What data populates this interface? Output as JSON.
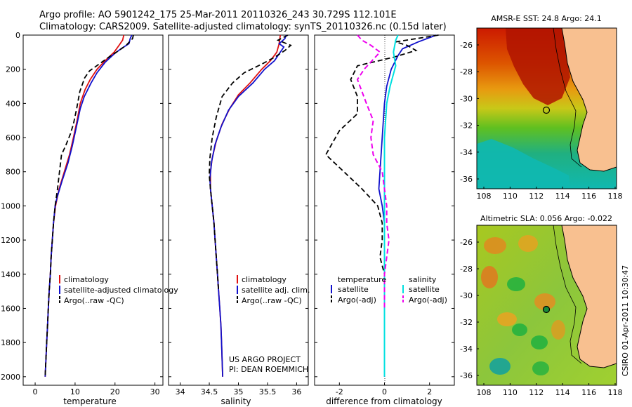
{
  "header": {
    "line1": "Argo profile: AO 5901242_175 25-Mar-2011 20110326_243 30.729S 112.101E",
    "line2": "Climatology: CARS2009. Satellite-adjusted climatology: synTS_20110326.nc (0.15d later)"
  },
  "side_label": "CSIRO 01-Apr-2011 10:30:47",
  "project": {
    "line1": "US ARGO PROJECT",
    "line2": "PI: DEAN ROEMMICH"
  },
  "colors": {
    "climatology": "#e01010",
    "satellite": "#1010cc",
    "argo": "#000000",
    "cyan": "#00e0e0",
    "magenta": "#ee00ee",
    "land": "#f8c090"
  },
  "chart_data": [
    {
      "type": "line",
      "xlabel": "temperature",
      "ylabel": "",
      "xlim": [
        -3,
        32
      ],
      "ylim": [
        2050,
        0
      ],
      "x_ticks": [
        0,
        10,
        20,
        30
      ],
      "y_ticks": [
        0,
        200,
        400,
        600,
        800,
        1000,
        1200,
        1400,
        1600,
        1800,
        2000
      ],
      "legend": [
        "climatology",
        "satellite-adjusted climatology",
        "Argo(..raw -QC)"
      ],
      "series": [
        {
          "name": "climatology",
          "style": "red",
          "points": [
            [
              22.2,
              0
            ],
            [
              21.9,
              30
            ],
            [
              21.0,
              60
            ],
            [
              19.8,
              100
            ],
            [
              17.5,
              150
            ],
            [
              15.5,
              200
            ],
            [
              13.8,
              260
            ],
            [
              12.5,
              320
            ],
            [
              11.3,
              400
            ],
            [
              10.5,
              500
            ],
            [
              9.6,
              600
            ],
            [
              8.6,
              700
            ],
            [
              7.3,
              800
            ],
            [
              6.0,
              900
            ],
            [
              5.1,
              1000
            ],
            [
              4.6,
              1100
            ],
            [
              4.3,
              1200
            ],
            [
              4.0,
              1300
            ],
            [
              3.8,
              1400
            ],
            [
              3.5,
              1500
            ],
            [
              3.3,
              1600
            ],
            [
              3.1,
              1700
            ],
            [
              2.9,
              1800
            ],
            [
              2.7,
              1900
            ],
            [
              2.5,
              2000
            ]
          ]
        },
        {
          "name": "satellite-adjusted climatology",
          "style": "blue",
          "points": [
            [
              24.2,
              0
            ],
            [
              23.8,
              20
            ],
            [
              23.5,
              50
            ],
            [
              21.5,
              80
            ],
            [
              19.8,
              110
            ],
            [
              17.5,
              160
            ],
            [
              15.5,
              220
            ],
            [
              14.0,
              280
            ],
            [
              12.3,
              360
            ],
            [
              11.3,
              430
            ],
            [
              10.2,
              550
            ],
            [
              9.3,
              650
            ],
            [
              8.2,
              750
            ],
            [
              6.8,
              850
            ],
            [
              5.5,
              950
            ],
            [
              5.0,
              1000
            ],
            [
              4.6,
              1100
            ],
            [
              4.3,
              1200
            ],
            [
              4.0,
              1300
            ],
            [
              3.8,
              1400
            ],
            [
              3.5,
              1500
            ],
            [
              3.3,
              1600
            ],
            [
              3.1,
              1700
            ],
            [
              2.9,
              1800
            ],
            [
              2.7,
              1900
            ],
            [
              2.5,
              2000
            ]
          ]
        },
        {
          "name": "Argo(..raw -QC)",
          "style": "black-dash",
          "points": [
            [
              24.6,
              0
            ],
            [
              24.4,
              20
            ],
            [
              23.6,
              40
            ],
            [
              22.8,
              60
            ],
            [
              21.0,
              90
            ],
            [
              19.0,
              120
            ],
            [
              16.0,
              170
            ],
            [
              13.6,
              210
            ],
            [
              12.4,
              250
            ],
            [
              11.2,
              330
            ],
            [
              10.4,
              430
            ],
            [
              9.6,
              520
            ],
            [
              8.8,
              580
            ],
            [
              7.6,
              650
            ],
            [
              6.6,
              700
            ],
            [
              6.2,
              780
            ],
            [
              5.6,
              900
            ],
            [
              5.0,
              1000
            ],
            [
              4.6,
              1100
            ],
            [
              4.3,
              1200
            ],
            [
              4.0,
              1300
            ],
            [
              3.8,
              1400
            ],
            [
              3.5,
              1500
            ],
            [
              3.3,
              1600
            ],
            [
              3.1,
              1700
            ],
            [
              2.9,
              1800
            ],
            [
              2.7,
              1900
            ],
            [
              2.5,
              2000
            ]
          ]
        }
      ]
    },
    {
      "type": "line",
      "xlabel": "salinity",
      "ylabel": "",
      "xlim": [
        33.8,
        36.2
      ],
      "ylim": [
        2050,
        0
      ],
      "x_ticks": [
        34,
        34.5,
        35,
        35.5,
        36
      ],
      "legend": [
        "climatology",
        "satellite adj. clim.",
        "Argo(..raw -QC)"
      ],
      "series": [
        {
          "name": "climatology",
          "style": "red",
          "points": [
            [
              35.72,
              0
            ],
            [
              35.7,
              50
            ],
            [
              35.66,
              100
            ],
            [
              35.55,
              150
            ],
            [
              35.4,
              200
            ],
            [
              35.2,
              280
            ],
            [
              35.0,
              350
            ],
            [
              34.85,
              430
            ],
            [
              34.72,
              520
            ],
            [
              34.62,
              620
            ],
            [
              34.55,
              720
            ],
            [
              34.52,
              800
            ],
            [
              34.52,
              900
            ],
            [
              34.55,
              1000
            ],
            [
              34.58,
              1100
            ],
            [
              34.6,
              1200
            ],
            [
              34.62,
              1300
            ],
            [
              34.64,
              1400
            ],
            [
              34.66,
              1500
            ],
            [
              34.68,
              1600
            ],
            [
              34.7,
              1700
            ],
            [
              34.71,
              1800
            ],
            [
              34.72,
              1900
            ],
            [
              34.73,
              2000
            ]
          ]
        },
        {
          "name": "satellite adj. clim.",
          "style": "blue",
          "points": [
            [
              35.82,
              0
            ],
            [
              35.8,
              20
            ],
            [
              35.7,
              50
            ],
            [
              35.78,
              70
            ],
            [
              35.72,
              100
            ],
            [
              35.62,
              150
            ],
            [
              35.45,
              200
            ],
            [
              35.25,
              280
            ],
            [
              35.0,
              360
            ],
            [
              34.83,
              440
            ],
            [
              34.7,
              540
            ],
            [
              34.6,
              640
            ],
            [
              34.54,
              740
            ],
            [
              34.51,
              840
            ],
            [
              34.52,
              900
            ],
            [
              34.55,
              1000
            ],
            [
              34.58,
              1100
            ],
            [
              34.6,
              1200
            ],
            [
              34.62,
              1300
            ],
            [
              34.64,
              1400
            ],
            [
              34.66,
              1500
            ],
            [
              34.68,
              1600
            ],
            [
              34.7,
              1700
            ],
            [
              34.71,
              1800
            ],
            [
              34.72,
              1900
            ],
            [
              34.73,
              2000
            ]
          ]
        },
        {
          "name": "Argo(..raw -QC)",
          "style": "black-dash",
          "points": [
            [
              35.85,
              0
            ],
            [
              35.68,
              30
            ],
            [
              35.9,
              60
            ],
            [
              35.8,
              90
            ],
            [
              35.62,
              130
            ],
            [
              35.4,
              170
            ],
            [
              35.1,
              220
            ],
            [
              34.9,
              280
            ],
            [
              34.72,
              360
            ],
            [
              34.62,
              480
            ],
            [
              34.55,
              600
            ],
            [
              34.51,
              720
            ],
            [
              34.5,
              820
            ],
            [
              34.52,
              900
            ],
            [
              34.55,
              1000
            ],
            [
              34.58,
              1100
            ],
            [
              34.6,
              1200
            ],
            [
              34.62,
              1300
            ],
            [
              34.64,
              1400
            ],
            [
              34.66,
              1500
            ]
          ]
        }
      ]
    },
    {
      "type": "line",
      "xlabel": "difference from climatology",
      "ylabel": "",
      "xlim": [
        -3.1,
        3.1
      ],
      "ylim": [
        2050,
        0
      ],
      "x_ticks": [
        -2,
        0,
        2
      ],
      "legend_temperature_title": "temperature",
      "legend_salinity_title": "salinity",
      "legend": [
        "satellite",
        "Argo(-adj)",
        "satellite",
        "Argo(-adj)"
      ],
      "series": [
        {
          "name": "temperature satellite",
          "style": "blue",
          "points": [
            [
              2.3,
              0
            ],
            [
              1.5,
              40
            ],
            [
              0.8,
              80
            ],
            [
              0.6,
              120
            ],
            [
              0.3,
              200
            ],
            [
              0.1,
              300
            ],
            [
              0.0,
              400
            ],
            [
              -0.05,
              500
            ],
            [
              -0.1,
              600
            ],
            [
              -0.15,
              700
            ],
            [
              -0.2,
              800
            ],
            [
              -0.25,
              900
            ],
            [
              -0.1,
              1000
            ],
            [
              0.0,
              1100
            ],
            [
              0.0,
              1200
            ],
            [
              0.0,
              1400
            ],
            [
              0.0,
              1600
            ],
            [
              0.0,
              1800
            ],
            [
              0.0,
              2000
            ]
          ]
        },
        {
          "name": "temperature Argo(-adj)",
          "style": "black-dash",
          "points": [
            [
              2.4,
              0
            ],
            [
              0.5,
              40
            ],
            [
              1.0,
              60
            ],
            [
              1.4,
              90
            ],
            [
              0.4,
              130
            ],
            [
              -1.2,
              180
            ],
            [
              -1.5,
              260
            ],
            [
              -1.2,
              360
            ],
            [
              -1.2,
              460
            ],
            [
              -2.0,
              560
            ],
            [
              -2.6,
              700
            ],
            [
              -1.8,
              800
            ],
            [
              -1.0,
              900
            ],
            [
              -0.3,
              1000
            ],
            [
              -0.1,
              1100
            ],
            [
              -0.1,
              1200
            ],
            [
              -0.2,
              1300
            ],
            [
              0.0,
              1400
            ],
            [
              0.0,
              1600
            ]
          ]
        },
        {
          "name": "salinity satellite",
          "style": "cyan",
          "points": [
            [
              0.6,
              0
            ],
            [
              0.5,
              30
            ],
            [
              0.4,
              100
            ],
            [
              0.5,
              180
            ],
            [
              0.25,
              300
            ],
            [
              0.1,
              400
            ],
            [
              0.05,
              500
            ],
            [
              0.0,
              600
            ],
            [
              0.0,
              800
            ],
            [
              0.0,
              1000
            ],
            [
              0.0,
              1200
            ],
            [
              0.0,
              1400
            ],
            [
              0.0,
              1600
            ],
            [
              0.0,
              1800
            ],
            [
              0.0,
              2000
            ]
          ]
        },
        {
          "name": "salinity Argo(-adj)",
          "style": "magenta-dash",
          "points": [
            [
              -1.2,
              0
            ],
            [
              -1.0,
              30
            ],
            [
              -0.6,
              60
            ],
            [
              -0.2,
              100
            ],
            [
              -0.9,
              200
            ],
            [
              -1.2,
              260
            ],
            [
              -0.8,
              400
            ],
            [
              -0.5,
              500
            ],
            [
              -0.6,
              600
            ],
            [
              -0.5,
              700
            ],
            [
              -0.1,
              800
            ],
            [
              0.1,
              1000
            ],
            [
              0.1,
              1100
            ],
            [
              0.2,
              1200
            ],
            [
              0.1,
              1300
            ],
            [
              0.0,
              1400
            ],
            [
              0.0,
              1600
            ]
          ]
        }
      ]
    }
  ],
  "maps": [
    {
      "title": "AMSR-E SST: 24.8 Argo: 24.1",
      "x_ticks": [
        "108",
        "110",
        "112",
        "114",
        "116",
        "118"
      ],
      "y_ticks": [
        "-26",
        "-28",
        "-30",
        "-32",
        "-34",
        "-36"
      ],
      "argo_position": {
        "lon": 112.101,
        "lat": -30.729
      }
    },
    {
      "title": "Altimetric SLA: 0.056 Argo: -0.022",
      "x_ticks": [
        "108",
        "110",
        "112",
        "114",
        "116",
        "118"
      ],
      "y_ticks": [
        "-26",
        "-28",
        "-30",
        "-32",
        "-34",
        "-36"
      ],
      "argo_position": {
        "lon": 112.101,
        "lat": -30.729
      }
    }
  ]
}
